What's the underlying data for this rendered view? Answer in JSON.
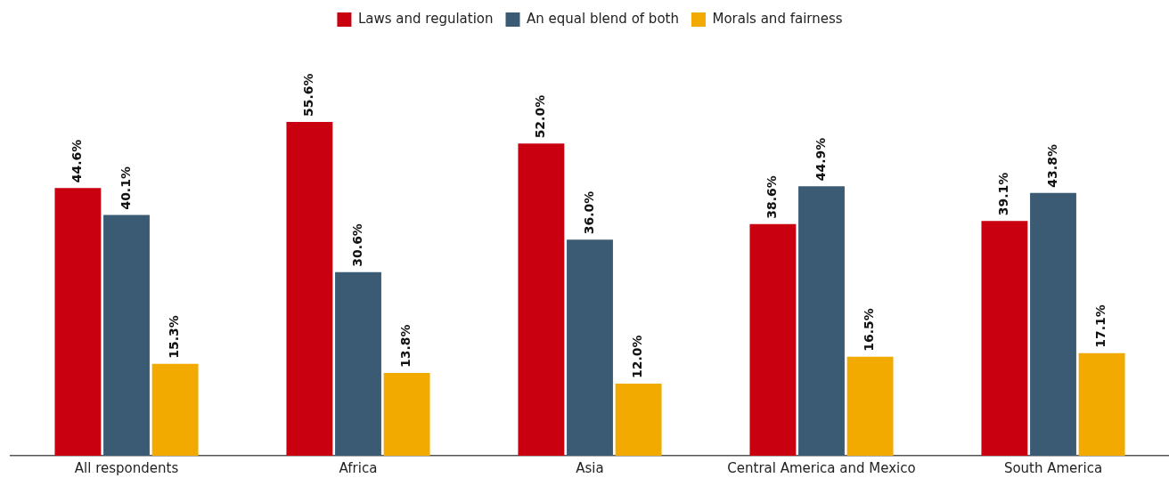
{
  "chart_data": {
    "type": "bar",
    "categories": [
      "All respondents",
      "Africa",
      "Asia",
      "Central America and Mexico",
      "South America"
    ],
    "series": [
      {
        "name": "Laws and regulation",
        "color": "#c8000f",
        "values": [
          44.6,
          55.6,
          52.0,
          38.6,
          39.1
        ],
        "value_labels": [
          "44.6%",
          "55.6%",
          "52.0%",
          "38.6%",
          "39.1%"
        ]
      },
      {
        "name": "An equal blend of both",
        "color": "#3b5a74",
        "values": [
          40.1,
          30.6,
          36.0,
          44.9,
          43.8
        ],
        "value_labels": [
          "40.1%",
          "30.6%",
          "36.0%",
          "44.9%",
          "43.8%"
        ]
      },
      {
        "name": "Morals and fairness",
        "color": "#f2a900",
        "values": [
          15.3,
          13.8,
          12.0,
          16.5,
          17.1
        ],
        "value_labels": [
          "15.3%",
          "13.8%",
          "12.0%",
          "16.5%",
          "17.1%"
        ]
      }
    ],
    "grid": false,
    "legend": "top"
  }
}
